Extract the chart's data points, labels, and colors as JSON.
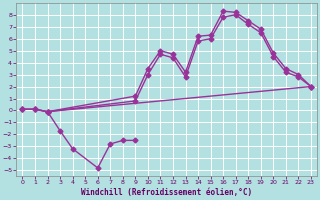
{
  "background_color": "#b3e0e0",
  "grid_color": "#ffffff",
  "line_color": "#993399",
  "xlabel": "Windchill (Refroidissement éolien,°C)",
  "xlim": [
    -0.5,
    23.5
  ],
  "ylim": [
    -5.5,
    9
  ],
  "xticks": [
    0,
    1,
    2,
    3,
    4,
    5,
    6,
    7,
    8,
    9,
    10,
    11,
    12,
    13,
    14,
    15,
    16,
    17,
    18,
    19,
    20,
    21,
    22,
    23
  ],
  "yticks": [
    -5,
    -4,
    -3,
    -2,
    -1,
    0,
    1,
    2,
    3,
    4,
    5,
    6,
    7,
    8
  ],
  "line1_x": [
    0,
    1,
    2,
    23
  ],
  "line1_y": [
    0.1,
    0.1,
    -0.1,
    2.0
  ],
  "line2_x": [
    2,
    3,
    4,
    6,
    7,
    8,
    9
  ],
  "line2_y": [
    -0.1,
    -1.7,
    -3.2,
    -4.8,
    -2.8,
    -2.5,
    -2.5
  ],
  "line3_x": [
    0,
    1,
    2,
    9,
    10,
    11,
    12,
    13,
    14,
    15,
    16,
    17,
    18,
    19,
    20,
    21,
    22,
    23
  ],
  "line3_y": [
    0.1,
    0.1,
    -0.1,
    1.2,
    3.5,
    5.0,
    4.7,
    3.2,
    6.2,
    6.3,
    8.3,
    8.2,
    7.5,
    6.8,
    4.8,
    3.5,
    3.0,
    2.0
  ],
  "line4_x": [
    0,
    1,
    2,
    9,
    10,
    11,
    12,
    13,
    14,
    15,
    16,
    17,
    18,
    19,
    20,
    21,
    22,
    23
  ],
  "line4_y": [
    0.1,
    0.1,
    -0.1,
    0.8,
    3.0,
    4.7,
    4.4,
    2.8,
    5.8,
    6.0,
    7.8,
    8.0,
    7.2,
    6.5,
    4.5,
    3.2,
    2.8,
    2.0
  ],
  "marker_size": 2.5,
  "line_width": 1.0,
  "tick_fontsize": 4.5,
  "xlabel_fontsize": 5.5
}
